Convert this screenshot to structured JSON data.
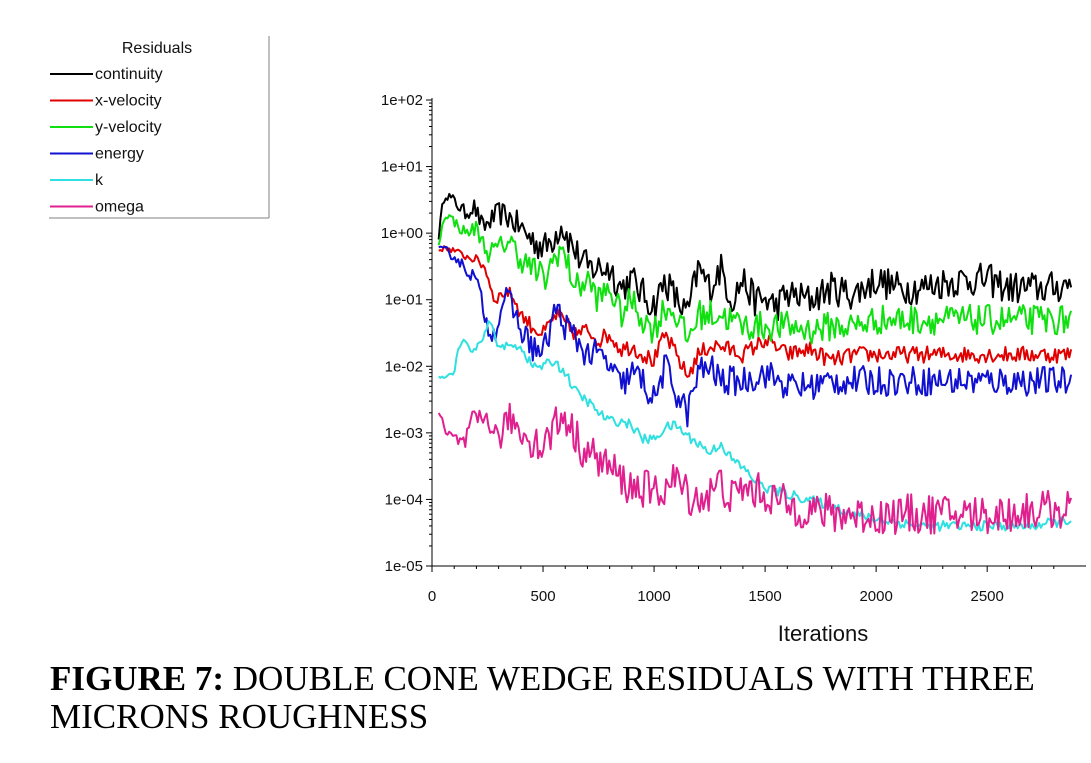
{
  "caption": {
    "label": "FIGURE 7:",
    "text": "DOUBLE CONE WEDGE RESIDUALS WITH THREE MICRONS ROUGHNESS"
  },
  "chart_data": {
    "type": "line",
    "title": "",
    "xlabel": "Iterations",
    "ylabel": "",
    "yscale": "log",
    "xlim": [
      0,
      2900
    ],
    "ylim": [
      1e-05,
      100
    ],
    "x_ticks": [
      0,
      500,
      1000,
      1500,
      2000,
      2500
    ],
    "x_tick_labels": [
      "0",
      "500",
      "1000",
      "1500",
      "2000",
      "2500"
    ],
    "y_ticks": [
      1e-05,
      0.0001,
      0.001,
      0.01,
      0.1,
      1,
      10,
      100
    ],
    "y_tick_labels": [
      "1e-05",
      "1e-04",
      "1e-03",
      "1e-02",
      "1e-01",
      "1e+00",
      "1e+01",
      "1e+02"
    ],
    "grid": false,
    "legend": {
      "title": "Residuals",
      "placement": "top-left"
    },
    "series": [
      {
        "name": "continuity",
        "color": "#000000",
        "noise": 0.5,
        "x": [
          30,
          50,
          60,
          100,
          150,
          190,
          230,
          300,
          340,
          400,
          450,
          510,
          560,
          580,
          650,
          700,
          800,
          850,
          900,
          950,
          1000,
          1050,
          1100,
          1150,
          1200,
          1250,
          1300,
          1350,
          1400,
          1450,
          1500,
          1550,
          1600,
          1700,
          1800,
          1900,
          2000,
          2100,
          2200,
          2300,
          2400,
          2500,
          2600,
          2700,
          2800,
          2880
        ],
        "y": [
          0.9,
          3.0,
          4.0,
          3.0,
          2.0,
          2.5,
          1.2,
          2.0,
          1.8,
          1.2,
          0.8,
          0.6,
          1.0,
          1.4,
          0.5,
          0.3,
          0.3,
          0.15,
          0.2,
          0.12,
          0.08,
          0.2,
          0.1,
          0.06,
          0.3,
          0.15,
          0.3,
          0.1,
          0.2,
          0.1,
          0.1,
          0.08,
          0.12,
          0.1,
          0.15,
          0.12,
          0.2,
          0.15,
          0.15,
          0.18,
          0.2,
          0.2,
          0.15,
          0.15,
          0.15,
          0.18
        ]
      },
      {
        "name": "x-velocity",
        "color": "#e00000",
        "noise": 0.25,
        "x": [
          30,
          60,
          100,
          150,
          200,
          240,
          280,
          330,
          360,
          400,
          450,
          500,
          560,
          580,
          650,
          700,
          750,
          800,
          850,
          900,
          950,
          1000,
          1050,
          1100,
          1150,
          1200,
          1250,
          1300,
          1400,
          1500,
          1600,
          1700,
          1800,
          1900,
          2000,
          2200,
          2400,
          2600,
          2800,
          2880
        ],
        "y": [
          0.55,
          0.6,
          0.55,
          0.45,
          0.4,
          0.3,
          0.1,
          0.13,
          0.12,
          0.06,
          0.04,
          0.03,
          0.06,
          0.05,
          0.03,
          0.035,
          0.025,
          0.03,
          0.018,
          0.02,
          0.015,
          0.012,
          0.03,
          0.015,
          0.007,
          0.015,
          0.02,
          0.02,
          0.015,
          0.025,
          0.015,
          0.018,
          0.012,
          0.015,
          0.015,
          0.015,
          0.015,
          0.015,
          0.015,
          0.015
        ]
      },
      {
        "name": "y-velocity",
        "color": "#10e010",
        "noise": 0.45,
        "x": [
          30,
          60,
          100,
          150,
          200,
          250,
          300,
          350,
          400,
          450,
          510,
          560,
          580,
          650,
          700,
          750,
          800,
          850,
          900,
          950,
          1000,
          1050,
          1100,
          1150,
          1200,
          1300,
          1400,
          1500,
          1600,
          1700,
          1800,
          1900,
          2000,
          2100,
          2200,
          2400,
          2600,
          2800,
          2880
        ],
        "y": [
          0.7,
          2.0,
          1.5,
          1.0,
          1.2,
          0.5,
          0.6,
          0.8,
          0.4,
          0.3,
          0.2,
          0.5,
          0.6,
          0.15,
          0.2,
          0.1,
          0.15,
          0.06,
          0.1,
          0.05,
          0.035,
          0.08,
          0.06,
          0.025,
          0.06,
          0.06,
          0.04,
          0.04,
          0.04,
          0.035,
          0.04,
          0.04,
          0.05,
          0.05,
          0.05,
          0.05,
          0.05,
          0.05,
          0.05
        ]
      },
      {
        "name": "energy",
        "color": "#1010d0",
        "noise": 0.45,
        "x": [
          30,
          60,
          100,
          150,
          200,
          250,
          280,
          330,
          360,
          400,
          450,
          500,
          560,
          580,
          650,
          700,
          750,
          800,
          850,
          900,
          950,
          1000,
          1050,
          1100,
          1150,
          1200,
          1250,
          1300,
          1400,
          1500,
          1600,
          1700,
          1800,
          1900,
          2000,
          2200,
          2400,
          2600,
          2800,
          2880
        ],
        "y": [
          0.55,
          0.55,
          0.45,
          0.3,
          0.2,
          0.04,
          0.03,
          0.12,
          0.08,
          0.035,
          0.02,
          0.015,
          0.08,
          0.05,
          0.025,
          0.015,
          0.015,
          0.01,
          0.005,
          0.008,
          0.006,
          0.003,
          0.01,
          0.004,
          0.002,
          0.008,
          0.01,
          0.006,
          0.006,
          0.008,
          0.005,
          0.005,
          0.006,
          0.006,
          0.006,
          0.006,
          0.006,
          0.006,
          0.006,
          0.006
        ]
      },
      {
        "name": "k",
        "color": "#30e0e0",
        "noise": 0.15,
        "x": [
          30,
          60,
          100,
          120,
          150,
          180,
          200,
          230,
          260,
          280,
          300,
          350,
          400,
          450,
          500,
          550,
          600,
          650,
          700,
          750,
          800,
          850,
          900,
          950,
          1000,
          1050,
          1100,
          1150,
          1200,
          1250,
          1300,
          1350,
          1400,
          1450,
          1500,
          1600,
          1700,
          1800,
          1900,
          2000,
          2100,
          2200,
          2300,
          2400,
          2500,
          2600,
          2700,
          2800,
          2880
        ],
        "y": [
          0.007,
          0.007,
          0.008,
          0.02,
          0.025,
          0.015,
          0.02,
          0.025,
          0.05,
          0.03,
          0.02,
          0.02,
          0.02,
          0.01,
          0.01,
          0.012,
          0.008,
          0.004,
          0.003,
          0.002,
          0.0015,
          0.0015,
          0.0013,
          0.0008,
          0.0008,
          0.0012,
          0.0013,
          0.0009,
          0.0007,
          0.0005,
          0.0007,
          0.0004,
          0.0003,
          0.0002,
          0.00015,
          0.00012,
          0.0001,
          8e-05,
          6e-05,
          5e-05,
          4.5e-05,
          4e-05,
          4e-05,
          4e-05,
          4e-05,
          4e-05,
          4e-05,
          4.5e-05,
          5e-05
        ]
      },
      {
        "name": "omega",
        "color": "#e0208e",
        "noise": 0.6,
        "x": [
          30,
          60,
          100,
          150,
          180,
          220,
          250,
          280,
          300,
          350,
          400,
          450,
          500,
          550,
          600,
          650,
          700,
          750,
          800,
          850,
          900,
          950,
          1000,
          1050,
          1100,
          1150,
          1200,
          1250,
          1300,
          1350,
          1400,
          1500,
          1600,
          1700,
          1800,
          1900,
          2000,
          2100,
          2200,
          2300,
          2400,
          2500,
          2600,
          2700,
          2800,
          2880
        ],
        "y": [
          0.002,
          0.001,
          0.0008,
          0.0007,
          0.0015,
          0.0015,
          0.0018,
          0.001,
          0.0008,
          0.0017,
          0.001,
          0.0008,
          0.0006,
          0.0013,
          0.0018,
          0.0008,
          0.0005,
          0.0004,
          0.0003,
          0.0002,
          0.00015,
          0.00015,
          0.00012,
          0.00015,
          0.0002,
          0.00012,
          0.0001,
          0.00012,
          0.00018,
          0.0001,
          0.00015,
          0.00012,
          8e-05,
          7e-05,
          6e-05,
          6e-05,
          5.5e-05,
          6e-05,
          6e-05,
          6e-05,
          6e-05,
          6e-05,
          6e-05,
          7e-05,
          7e-05,
          7e-05
        ]
      }
    ]
  }
}
